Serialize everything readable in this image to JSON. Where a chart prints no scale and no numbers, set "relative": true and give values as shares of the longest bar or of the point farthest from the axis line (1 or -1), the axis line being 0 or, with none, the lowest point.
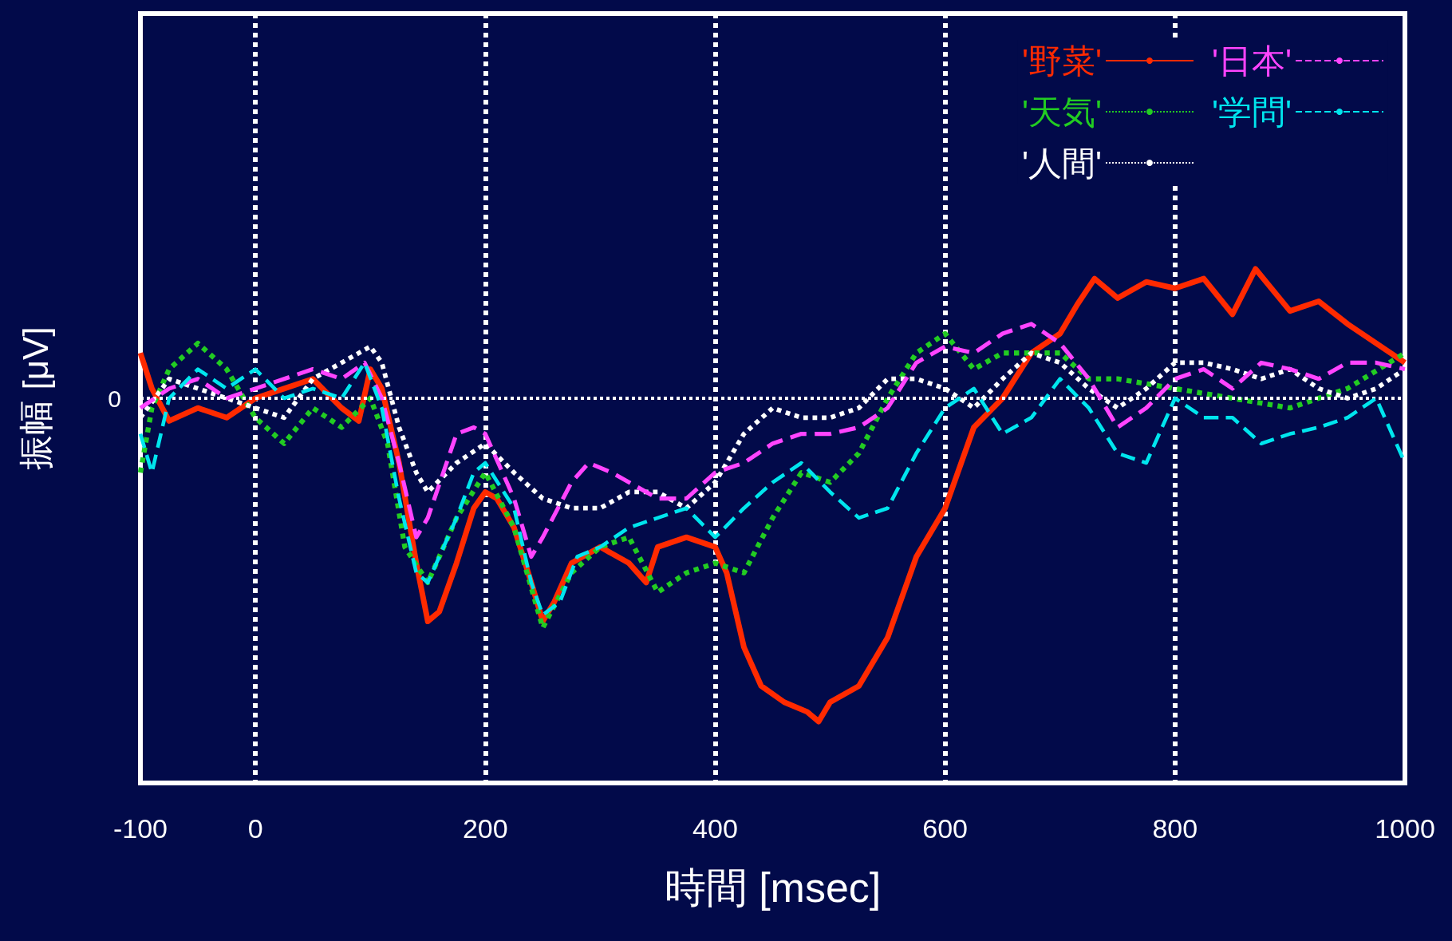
{
  "chart_data": {
    "type": "line",
    "relative": true,
    "xlabel": "時間 [msec]",
    "ylabel": "振幅 [μV]",
    "xlim": [
      -100,
      1000
    ],
    "xticks": [
      -100,
      0,
      200,
      400,
      600,
      800,
      1000
    ],
    "grid": "x",
    "legend": "top right",
    "marker": "none",
    "ref_lines": [
      {
        "axis": "y",
        "value": 0,
        "label": "0",
        "color": "#ffffff",
        "line_style": "dotted"
      }
    ],
    "series": [
      {
        "name": "'野菜'",
        "color": "#ff2a00",
        "line_style": "solid",
        "x": [
          -100,
          -90,
          -75,
          -50,
          -25,
          0,
          25,
          50,
          75,
          90,
          100,
          110,
          125,
          140,
          150,
          160,
          175,
          190,
          200,
          210,
          225,
          240,
          250,
          260,
          275,
          300,
          325,
          340,
          350,
          375,
          400,
          410,
          425,
          440,
          460,
          480,
          490,
          500,
          525,
          550,
          575,
          600,
          625,
          650,
          675,
          700,
          715,
          730,
          750,
          775,
          800,
          825,
          850,
          870,
          900,
          925,
          950,
          975,
          1000
        ],
        "values": [
          0.14,
          0.03,
          -0.07,
          -0.03,
          -0.06,
          0,
          0.03,
          0.06,
          -0.03,
          -0.07,
          0.09,
          0.03,
          -0.2,
          -0.51,
          -0.69,
          -0.66,
          -0.51,
          -0.34,
          -0.29,
          -0.31,
          -0.4,
          -0.57,
          -0.69,
          -0.63,
          -0.51,
          -0.46,
          -0.51,
          -0.57,
          -0.46,
          -0.43,
          -0.46,
          -0.54,
          -0.77,
          -0.89,
          -0.94,
          -0.97,
          -1,
          -0.94,
          -0.89,
          -0.74,
          -0.49,
          -0.34,
          -0.09,
          0,
          0.14,
          0.2,
          0.29,
          0.37,
          0.31,
          0.36,
          0.34,
          0.37,
          0.26,
          0.4,
          0.27,
          0.3,
          0.23,
          0.17,
          0.11
        ]
      },
      {
        "name": "'天気'",
        "color": "#22cc22",
        "line_style": "dotted",
        "x": [
          -100,
          -90,
          -75,
          -50,
          -25,
          0,
          25,
          50,
          75,
          100,
          115,
          130,
          150,
          175,
          200,
          225,
          250,
          275,
          300,
          325,
          350,
          375,
          400,
          425,
          450,
          475,
          500,
          525,
          550,
          575,
          600,
          625,
          650,
          675,
          700,
          725,
          750,
          800,
          850,
          900,
          950,
          1000
        ],
        "values": [
          -0.23,
          -0.03,
          0.09,
          0.17,
          0.09,
          -0.06,
          -0.14,
          -0.03,
          -0.09,
          0,
          -0.14,
          -0.46,
          -0.57,
          -0.37,
          -0.23,
          -0.4,
          -0.71,
          -0.54,
          -0.46,
          -0.43,
          -0.6,
          -0.54,
          -0.51,
          -0.54,
          -0.37,
          -0.23,
          -0.26,
          -0.17,
          0,
          0.14,
          0.2,
          0.09,
          0.14,
          0.14,
          0.14,
          0.06,
          0.06,
          0.03,
          0,
          -0.03,
          0.03,
          0.14
        ]
      },
      {
        "name": "'人間'",
        "color": "#ffffff",
        "line_style": "dotted",
        "x": [
          -100,
          -75,
          -50,
          -25,
          0,
          25,
          50,
          75,
          100,
          110,
          125,
          140,
          150,
          175,
          200,
          225,
          250,
          275,
          300,
          325,
          350,
          375,
          400,
          425,
          450,
          475,
          500,
          525,
          550,
          575,
          600,
          625,
          650,
          675,
          700,
          725,
          750,
          775,
          800,
          825,
          850,
          875,
          900,
          925,
          950,
          975,
          1000
        ],
        "values": [
          -0.06,
          0.06,
          0.03,
          0,
          -0.03,
          -0.06,
          0.06,
          0.11,
          0.16,
          0.11,
          -0.09,
          -0.23,
          -0.29,
          -0.2,
          -0.14,
          -0.23,
          -0.31,
          -0.34,
          -0.34,
          -0.29,
          -0.29,
          -0.34,
          -0.26,
          -0.11,
          -0.03,
          -0.06,
          -0.06,
          -0.03,
          0.06,
          0.06,
          0.03,
          -0.03,
          0.06,
          0.14,
          0.11,
          0.03,
          -0.03,
          0.03,
          0.11,
          0.11,
          0.09,
          0.06,
          0.09,
          0.03,
          0,
          0.03,
          0.09
        ]
      },
      {
        "name": "'日本'",
        "color": "#ff44ff",
        "line_style": "dashed",
        "x": [
          -100,
          -75,
          -50,
          -25,
          0,
          25,
          50,
          75,
          95,
          110,
          125,
          140,
          150,
          175,
          190,
          200,
          225,
          240,
          250,
          275,
          290,
          310,
          325,
          350,
          375,
          400,
          425,
          450,
          475,
          500,
          525,
          550,
          575,
          600,
          625,
          650,
          675,
          700,
          725,
          750,
          775,
          800,
          825,
          850,
          875,
          900,
          925,
          950,
          975,
          1000
        ],
        "values": [
          -0.03,
          0.03,
          0.06,
          0,
          0.03,
          0.06,
          0.09,
          0.06,
          0.11,
          0,
          -0.2,
          -0.43,
          -0.37,
          -0.11,
          -0.09,
          -0.11,
          -0.31,
          -0.49,
          -0.43,
          -0.26,
          -0.2,
          -0.23,
          -0.26,
          -0.31,
          -0.31,
          -0.23,
          -0.2,
          -0.14,
          -0.11,
          -0.11,
          -0.09,
          -0.03,
          0.11,
          0.16,
          0.14,
          0.2,
          0.23,
          0.17,
          0.06,
          -0.09,
          -0.03,
          0.06,
          0.09,
          0.03,
          0.11,
          0.09,
          0.06,
          0.11,
          0.11,
          0.09
        ]
      },
      {
        "name": "'学問'",
        "color": "#00e5ee",
        "line_style": "dashed",
        "x": [
          -100,
          -90,
          -75,
          -50,
          -25,
          0,
          25,
          50,
          75,
          95,
          110,
          125,
          140,
          150,
          175,
          190,
          200,
          225,
          240,
          250,
          265,
          280,
          300,
          325,
          350,
          375,
          400,
          425,
          450,
          475,
          500,
          525,
          550,
          575,
          600,
          625,
          650,
          675,
          700,
          725,
          750,
          775,
          800,
          825,
          850,
          875,
          900,
          925,
          950,
          975,
          1000
        ],
        "values": [
          -0.11,
          -0.23,
          0,
          0.09,
          0.03,
          0.09,
          0,
          0.03,
          0,
          0.11,
          -0.03,
          -0.31,
          -0.54,
          -0.57,
          -0.37,
          -0.23,
          -0.2,
          -0.34,
          -0.57,
          -0.67,
          -0.63,
          -0.49,
          -0.46,
          -0.4,
          -0.37,
          -0.34,
          -0.43,
          -0.34,
          -0.26,
          -0.2,
          -0.29,
          -0.37,
          -0.34,
          -0.17,
          -0.03,
          0.03,
          -0.11,
          -0.06,
          0.06,
          -0.03,
          -0.17,
          -0.2,
          0,
          -0.06,
          -0.06,
          -0.14,
          -0.11,
          -0.09,
          -0.06,
          0,
          -0.2
        ]
      }
    ]
  }
}
